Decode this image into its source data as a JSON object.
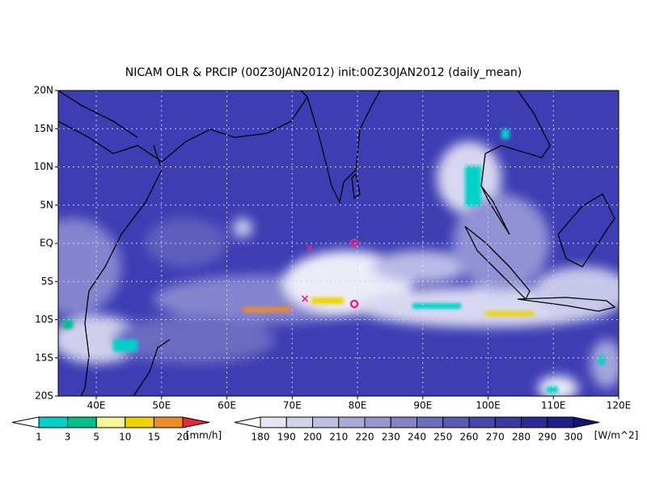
{
  "title": "NICAM OLR & PRCIP (00Z30JAN2012) init:00Z30JAN2012 (daily_mean)",
  "map": {
    "lat_labels": [
      "20N",
      "15N",
      "10N",
      "5N",
      "EQ",
      "5S",
      "10S",
      "15S",
      "20S"
    ],
    "lon_labels": [
      "40E",
      "50E",
      "60E",
      "70E",
      "80E",
      "90E",
      "100E",
      "110E",
      "120E"
    ]
  },
  "precip_colorbar": {
    "labels": [
      "1",
      "3",
      "5",
      "10",
      "15",
      "20"
    ],
    "unit": "[mm/h]",
    "colors": [
      "#ffffff",
      "#00d2c8",
      "#00c08a",
      "#f5f59a",
      "#f0d200",
      "#f08c28",
      "#e6283c"
    ]
  },
  "olr_colorbar": {
    "labels": [
      "180",
      "190",
      "200",
      "210",
      "220",
      "230",
      "240",
      "250",
      "260",
      "270",
      "280",
      "290",
      "300"
    ],
    "unit": "[W/m^2]",
    "colors": [
      "#ffffff",
      "#e6e6f2",
      "#d2d2ea",
      "#bebee2",
      "#aaaad8",
      "#9696d0",
      "#8282c6",
      "#6e6ebe",
      "#5a5ab4",
      "#4646aa",
      "#3838a0",
      "#2a2a96",
      "#1e1e8a",
      "#141478"
    ]
  }
}
